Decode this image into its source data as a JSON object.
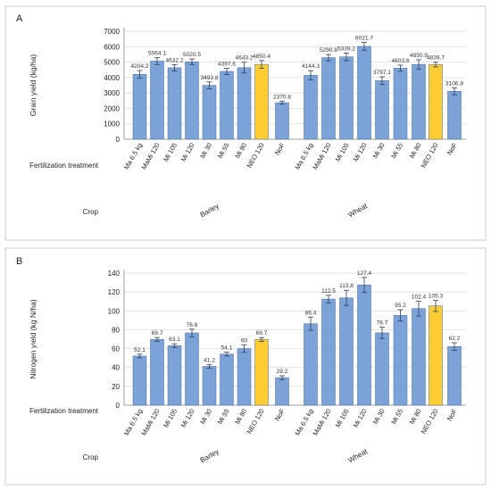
{
  "chart_data": [
    {
      "type": "bar",
      "panel": "A",
      "ylabel": "Grain yield (kg/ha)",
      "xlabel": "Fertilization treatment",
      "group_label": "Crop",
      "ylim": [
        0,
        7000
      ],
      "yticks": [
        0,
        1000,
        2000,
        3000,
        4000,
        5000,
        6000,
        7000
      ],
      "grid": true,
      "groups": [
        {
          "name": "Barley",
          "categories": [
            "Ma 6.5 kg",
            "MaMi 120",
            "Mi 105",
            "Mi 120",
            "Mi 30",
            "Mi 55",
            "Mi 80",
            "NEO 120",
            "NoF"
          ],
          "values": [
            4204.2,
            5064.1,
            4632.2,
            5020.5,
            3493.8,
            4397.6,
            4643.2,
            4850.4,
            2370.8
          ],
          "value_labels": [
            "4204.2",
            "5064.1",
            "4632.2",
            "5020.5",
            "3493.8",
            "4397.6",
            "4643.2",
            "4850.4",
            "2370.8"
          ],
          "errors": [
            250,
            220,
            200,
            180,
            220,
            200,
            350,
            250,
            100
          ]
        },
        {
          "name": "Wheat",
          "categories": [
            "Ma 6.5 kg",
            "MaMi 120",
            "Mi 105",
            "Mi 120",
            "Mi 30",
            "Mi 55",
            "Mi 80",
            "NEO 120",
            "NoF"
          ],
          "values": [
            4144.3,
            5290.8,
            5339.2,
            6021.7,
            3797.1,
            4603.6,
            4850.9,
            4839.7,
            3106.8
          ],
          "value_labels": [
            "4144.3",
            "5290.8",
            "5339.2",
            "6021.7",
            "3797.1",
            "4603.6",
            "4850.9",
            "4839.7",
            "3106.8"
          ],
          "errors": [
            300,
            200,
            250,
            250,
            250,
            200,
            300,
            150,
            220
          ]
        }
      ]
    },
    {
      "type": "bar",
      "panel": "B",
      "ylabel": "Nitrogen yield (kg N/ha)",
      "xlabel": "Fertilization treatment",
      "group_label": "Crop",
      "ylim": [
        0,
        140
      ],
      "yticks": [
        0,
        20,
        40,
        60,
        80,
        100,
        120,
        140
      ],
      "grid": true,
      "groups": [
        {
          "name": "Barley",
          "categories": [
            "Ma 6.5 kg",
            "MaMi 120",
            "Mi 105",
            "Mi 120",
            "Mi 30",
            "Mi 55",
            "Mi 80",
            "NEO 120",
            "NoF"
          ],
          "values": [
            52.1,
            69.7,
            63.1,
            76.6,
            41.2,
            54.1,
            60,
            69.7,
            29.2
          ],
          "value_labels": [
            "52.1",
            "69.7",
            "63.1",
            "76.6",
            "41.2",
            "54.1",
            "60",
            "69.7",
            "29.2"
          ],
          "errors": [
            2,
            2,
            2,
            4,
            2,
            2,
            4,
            2,
            2
          ]
        },
        {
          "name": "Wheat",
          "categories": [
            "Ma 6.5 kg",
            "MaMi 120",
            "Mi 105",
            "Mi 120",
            "Mi 30",
            "Mi 55",
            "Mi 80",
            "NEO 120",
            "NoF"
          ],
          "values": [
            86.4,
            112.5,
            113.8,
            127.4,
            76.7,
            95.2,
            102.4,
            105.3,
            62.2
          ],
          "value_labels": [
            "86.4",
            "112.5",
            "113.8",
            "127.4",
            "76.7",
            "95.2",
            "102.4",
            "105.3",
            "62.2"
          ],
          "errors": [
            7,
            4,
            8,
            8,
            6,
            6,
            8,
            6,
            4
          ]
        }
      ]
    }
  ],
  "colors": {
    "bar": "#7ba3d8",
    "highlight": "#ffcc33",
    "bar_stroke": "#4a6a9a",
    "grid": "#d9d9d9",
    "panel_border": "#bfbfbf",
    "error_bar": "#2b3f5c"
  },
  "highlight_category": "NEO 120"
}
